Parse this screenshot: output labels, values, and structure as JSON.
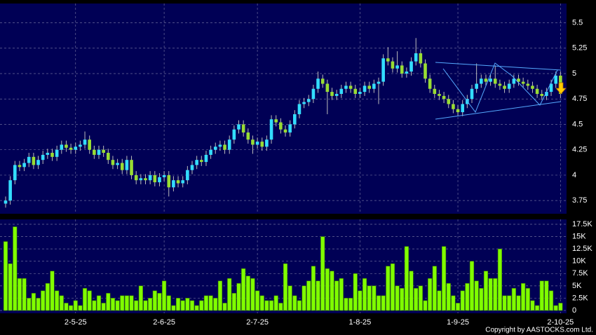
{
  "chart_data": [
    {
      "type": "candlestick",
      "up_color": "#33ddff",
      "down_color": "#99dd33",
      "ylim": [
        3.62,
        5.69
      ],
      "yticks": [
        3.75,
        4,
        4.25,
        4.5,
        4.75,
        5,
        5.25,
        5.5
      ],
      "grid": true,
      "open": [
        3.72,
        3.75,
        3.95,
        4.1,
        4.08,
        4.12,
        4.18,
        4.1,
        4.15,
        4.2,
        4.22,
        4.18,
        4.25,
        4.3,
        4.27,
        4.25,
        4.28,
        4.3,
        4.35,
        4.25,
        4.2,
        4.25,
        4.22,
        4.15,
        4.1,
        4.12,
        4.05,
        4.15,
        4.0,
        3.95,
        3.97,
        3.95,
        4.0,
        3.93,
        3.98,
        4.0,
        3.88,
        3.95,
        3.92,
        3.95,
        4.05,
        4.1,
        4.15,
        4.13,
        4.2,
        4.25,
        4.28,
        4.3,
        4.25,
        4.35,
        4.45,
        4.5,
        4.42,
        4.35,
        4.3,
        4.33,
        4.28,
        4.35,
        4.55,
        4.52,
        4.45,
        4.42,
        4.5,
        4.6,
        4.7,
        4.72,
        4.75,
        4.85,
        4.95,
        4.9,
        4.82,
        4.78,
        4.8,
        4.85,
        4.88,
        4.85,
        4.8,
        4.82,
        4.88,
        4.85,
        4.9,
        4.92,
        5.15,
        5.12,
        5.05,
        5.08,
        5.0,
        5.02,
        5.12,
        5.2,
        5.1,
        4.95,
        4.85,
        4.8,
        4.78,
        4.75,
        4.7,
        4.65,
        4.62,
        4.7,
        4.75,
        4.85,
        4.9,
        4.95,
        4.92,
        4.95,
        4.9,
        4.88,
        4.85,
        4.9,
        4.95,
        4.92,
        4.9,
        4.88,
        4.85,
        4.8,
        4.78,
        4.82,
        4.9,
        4.98
      ],
      "high": [
        3.79,
        3.99,
        4.14,
        4.14,
        4.16,
        4.22,
        4.22,
        4.19,
        4.24,
        4.26,
        4.26,
        4.29,
        4.34,
        4.34,
        4.31,
        4.32,
        4.34,
        4.43,
        4.39,
        4.29,
        4.29,
        4.29,
        4.26,
        4.19,
        4.16,
        4.16,
        4.19,
        4.19,
        4.04,
        4.01,
        4.01,
        4.04,
        4.04,
        4.02,
        4.04,
        4.04,
        3.99,
        3.99,
        3.99,
        4.09,
        4.14,
        4.19,
        4.19,
        4.24,
        4.29,
        4.32,
        4.34,
        4.34,
        4.39,
        4.49,
        4.54,
        4.54,
        4.46,
        4.39,
        4.37,
        4.37,
        4.39,
        4.59,
        4.59,
        4.56,
        4.49,
        4.54,
        4.64,
        4.74,
        4.76,
        4.79,
        4.89,
        5.02,
        4.99,
        4.94,
        4.86,
        4.84,
        4.89,
        4.92,
        4.92,
        4.89,
        4.86,
        4.92,
        4.92,
        4.94,
        4.96,
        5.19,
        5.26,
        5.16,
        5.22,
        5.12,
        5.06,
        5.16,
        5.35,
        5.24,
        5.14,
        4.99,
        4.89,
        4.84,
        4.82,
        4.79,
        4.74,
        4.69,
        4.74,
        4.79,
        4.89,
        5.1,
        4.99,
        4.99,
        4.99,
        5.08,
        4.94,
        4.92,
        4.94,
        4.99,
        4.99,
        4.96,
        4.94,
        4.92,
        4.89,
        4.84,
        4.86,
        4.94,
        5.02,
        5.02
      ],
      "low": [
        3.68,
        3.71,
        3.91,
        4.04,
        4.04,
        4.08,
        4.06,
        4.06,
        4.11,
        4.16,
        4.14,
        4.14,
        4.21,
        4.23,
        4.21,
        4.21,
        4.24,
        4.26,
        4.21,
        4.16,
        4.16,
        4.18,
        4.11,
        4.06,
        4.06,
        4.01,
        4.01,
        3.96,
        3.91,
        3.91,
        3.91,
        3.91,
        3.89,
        3.89,
        3.94,
        3.79,
        3.84,
        3.88,
        3.88,
        3.91,
        4.01,
        4.06,
        4.09,
        4.09,
        4.16,
        4.21,
        4.24,
        4.21,
        4.21,
        4.31,
        4.41,
        4.38,
        4.31,
        4.21,
        4.26,
        4.24,
        4.24,
        4.31,
        4.48,
        4.41,
        4.38,
        4.38,
        4.46,
        4.56,
        4.66,
        4.68,
        4.71,
        4.81,
        4.86,
        4.6,
        4.74,
        4.74,
        4.76,
        4.81,
        4.81,
        4.76,
        4.76,
        4.78,
        4.81,
        4.81,
        4.7,
        4.88,
        5.08,
        5.01,
        5.01,
        4.96,
        4.96,
        4.98,
        5.08,
        5.06,
        4.91,
        4.81,
        4.76,
        4.74,
        4.71,
        4.66,
        4.61,
        4.58,
        4.58,
        4.66,
        4.71,
        4.81,
        4.86,
        4.88,
        4.88,
        4.86,
        4.84,
        4.81,
        4.81,
        4.86,
        4.88,
        4.86,
        4.84,
        4.81,
        4.76,
        4.74,
        4.74,
        4.78,
        4.86,
        4.76
      ],
      "close": [
        3.75,
        3.95,
        4.1,
        4.08,
        4.12,
        4.18,
        4.1,
        4.15,
        4.2,
        4.22,
        4.18,
        4.25,
        4.3,
        4.27,
        4.25,
        4.28,
        4.3,
        4.35,
        4.25,
        4.2,
        4.25,
        4.22,
        4.15,
        4.1,
        4.12,
        4.05,
        4.15,
        4.0,
        3.95,
        3.97,
        3.95,
        4.0,
        3.93,
        3.98,
        4.0,
        3.88,
        3.95,
        3.92,
        3.95,
        4.05,
        4.1,
        4.15,
        4.13,
        4.2,
        4.25,
        4.28,
        4.3,
        4.25,
        4.35,
        4.45,
        4.5,
        4.42,
        4.35,
        4.3,
        4.33,
        4.28,
        4.35,
        4.55,
        4.52,
        4.45,
        4.42,
        4.5,
        4.6,
        4.7,
        4.72,
        4.75,
        4.85,
        4.95,
        4.9,
        4.82,
        4.78,
        4.8,
        4.85,
        4.88,
        4.85,
        4.8,
        4.82,
        4.88,
        4.85,
        4.9,
        4.92,
        5.15,
        5.12,
        5.05,
        5.08,
        5.0,
        5.02,
        5.12,
        5.2,
        5.1,
        4.95,
        4.85,
        4.8,
        4.78,
        4.75,
        4.7,
        4.65,
        4.62,
        4.7,
        4.75,
        4.85,
        4.9,
        4.95,
        4.92,
        4.95,
        4.9,
        4.88,
        4.85,
        4.9,
        4.95,
        4.92,
        4.9,
        4.88,
        4.85,
        4.8,
        4.78,
        4.82,
        4.9,
        4.98,
        4.8
      ]
    },
    {
      "type": "bar",
      "color": "#80ff00",
      "ylim": [
        -570,
        18500
      ],
      "yticks": [
        0,
        {
          "value": 2500,
          "label": "2.5K"
        },
        {
          "value": 5000,
          "label": "5K"
        },
        {
          "value": 7500,
          "label": "7.5K"
        },
        {
          "value": 10000,
          "label": "10K"
        },
        {
          "value": 12500,
          "label": "12.5K"
        },
        {
          "value": 15000,
          "label": "15K"
        },
        {
          "value": 17500,
          "label": "17.5K"
        }
      ],
      "grid": true,
      "categories": [
        null,
        null,
        null,
        null,
        null,
        null,
        null,
        null,
        null,
        null,
        null,
        null,
        null,
        null,
        null,
        "2-5-25",
        null,
        null,
        null,
        null,
        null,
        null,
        null,
        null,
        null,
        null,
        null,
        null,
        null,
        null,
        null,
        null,
        null,
        null,
        "2-6-25",
        null,
        null,
        null,
        null,
        null,
        null,
        null,
        null,
        null,
        null,
        null,
        null,
        null,
        null,
        null,
        null,
        null,
        null,
        null,
        "2-7-25",
        null,
        null,
        null,
        null,
        null,
        null,
        null,
        null,
        null,
        null,
        null,
        null,
        null,
        null,
        null,
        null,
        null,
        null,
        null,
        null,
        null,
        "1-8-25",
        null,
        null,
        null,
        null,
        null,
        null,
        null,
        null,
        null,
        null,
        null,
        null,
        null,
        null,
        null,
        null,
        null,
        null,
        null,
        null,
        "1-9-25",
        null,
        null,
        null,
        null,
        null,
        null,
        null,
        null,
        null,
        null,
        null,
        null,
        null,
        null,
        null,
        null,
        null,
        null,
        null,
        null,
        null,
        "2-10-25"
      ],
      "values": [
        14000,
        9500,
        17000,
        6500,
        6500,
        2500,
        3500,
        2500,
        4000,
        5500,
        8000,
        4000,
        3000,
        1500,
        1000,
        2000,
        1000,
        4500,
        4000,
        2000,
        3000,
        1500,
        3500,
        2500,
        2000,
        3000,
        3000,
        3000,
        2000,
        5000,
        2000,
        2500,
        4000,
        3500,
        6000,
        3000,
        1000,
        2500,
        2000,
        2500,
        2000,
        1000,
        2000,
        3000,
        3000,
        2500,
        6000,
        1500,
        6500,
        3500,
        5500,
        8500,
        7000,
        6500,
        4000,
        3000,
        2000,
        2000,
        3000,
        1500,
        9500,
        5000,
        3000,
        2000,
        5000,
        6000,
        9000,
        6000,
        15000,
        8500,
        8000,
        6000,
        6500,
        2500,
        2500,
        7500,
        4000,
        6500,
        5000,
        5000,
        3000,
        3000,
        9000,
        9500,
        5000,
        4500,
        13000,
        8000,
        4500,
        5000,
        2000,
        6500,
        9000,
        4000,
        13000,
        5500,
        3000,
        1500,
        4000,
        5500,
        10000,
        6000,
        4500,
        8000,
        6500,
        6500,
        12500,
        3000,
        3000,
        4500,
        3000,
        5500,
        4500,
        2000,
        1000,
        6000,
        6000,
        4000,
        1000,
        1500
      ]
    }
  ],
  "copyright": "Copyright by AASTOCKS.com Ltd."
}
